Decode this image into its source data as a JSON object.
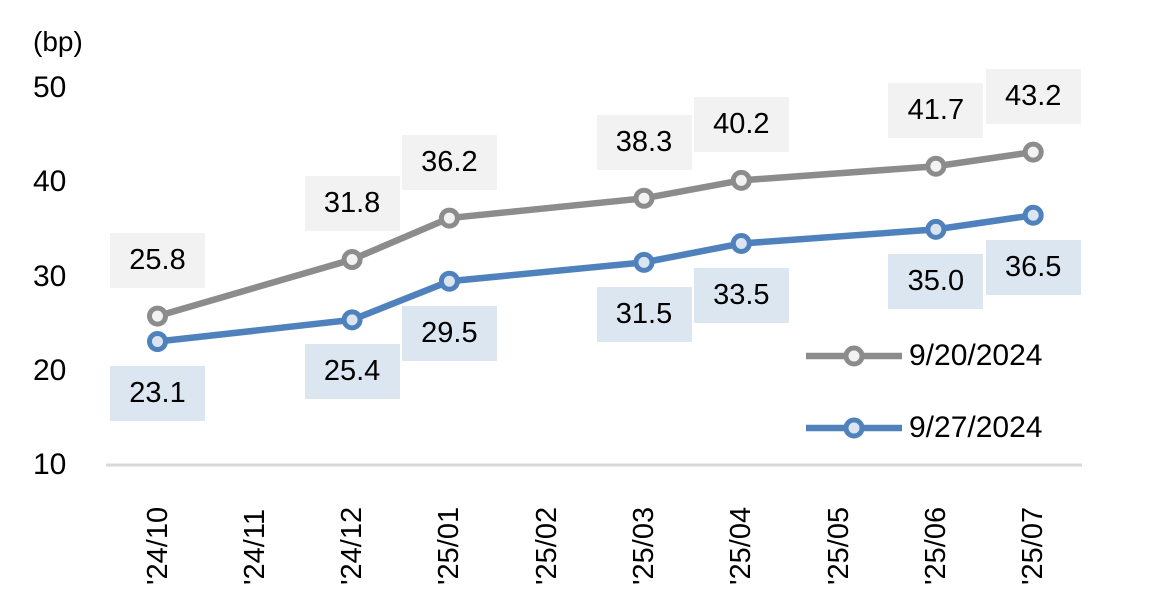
{
  "chart_data": {
    "type": "line",
    "title": "",
    "unit": "(bp)",
    "x_categories": [
      "'24/10",
      "'24/11",
      "'24/12",
      "'25/01",
      "'25/02",
      "'25/03",
      "'25/04",
      "'25/05",
      "'25/06",
      "'25/07"
    ],
    "y_ticks": [
      "50",
      "40",
      "30",
      "20",
      "10"
    ],
    "y_tick_values": [
      50,
      40,
      30,
      20,
      10
    ],
    "ylim": [
      10,
      50
    ],
    "grid": "baseline-only",
    "axis_color": "#d9d9d9",
    "text_color": "#000000",
    "legend_position": "inside-right",
    "series": [
      {
        "name": "9/20/2024",
        "color": "#8c8c8c",
        "marker_fill": "#f2f2f2",
        "label_bg": "#f2f2f2",
        "label_position": "above",
        "points": [
          {
            "x": "'24/10",
            "y": 25.8,
            "label": "25.8"
          },
          {
            "x": "'24/12",
            "y": 31.8,
            "label": "31.8"
          },
          {
            "x": "'25/01",
            "y": 36.2,
            "label": "36.2"
          },
          {
            "x": "'25/03",
            "y": 38.3,
            "label": "38.3"
          },
          {
            "x": "'25/04",
            "y": 40.2,
            "label": "40.2"
          },
          {
            "x": "'25/06",
            "y": 41.7,
            "label": "41.7"
          },
          {
            "x": "'25/07",
            "y": 43.2,
            "label": "43.2"
          }
        ]
      },
      {
        "name": "9/27/2024",
        "color": "#4f81bd",
        "marker_fill": "#dbe5f1",
        "label_bg": "#dce6f1",
        "label_position": "below",
        "points": [
          {
            "x": "'24/10",
            "y": 23.1,
            "label": "23.1"
          },
          {
            "x": "'24/12",
            "y": 25.4,
            "label": "25.4"
          },
          {
            "x": "'25/01",
            "y": 29.5,
            "label": "29.5"
          },
          {
            "x": "'25/03",
            "y": 31.5,
            "label": "31.5"
          },
          {
            "x": "'25/04",
            "y": 33.5,
            "label": "33.5"
          },
          {
            "x": "'25/06",
            "y": 35.0,
            "label": "35.0"
          },
          {
            "x": "'25/07",
            "y": 36.5,
            "label": "36.5"
          }
        ]
      }
    ]
  }
}
